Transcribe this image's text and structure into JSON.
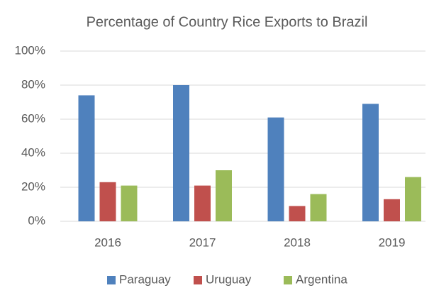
{
  "chart_data": {
    "type": "bar",
    "title": "Percentage of Country Rice Exports to Brazil",
    "categories": [
      "2016",
      "2017",
      "2018",
      "2019"
    ],
    "series": [
      {
        "name": "Paraguay",
        "color": "#4f81bd",
        "values": [
          74,
          80,
          61,
          69
        ]
      },
      {
        "name": "Uruguay",
        "color": "#c0504d",
        "values": [
          23,
          21,
          9,
          13
        ]
      },
      {
        "name": "Argentina",
        "color": "#9bbb59",
        "values": [
          21,
          30,
          16,
          26
        ]
      }
    ],
    "ylim": [
      0,
      100
    ],
    "yticks": [
      {
        "value": 0,
        "label": "0%"
      },
      {
        "value": 20,
        "label": "20%"
      },
      {
        "value": 40,
        "label": "40%"
      },
      {
        "value": 60,
        "label": "60%"
      },
      {
        "value": 80,
        "label": "80%"
      },
      {
        "value": 100,
        "label": "100%"
      }
    ],
    "grid": true,
    "legend": "bottom"
  }
}
